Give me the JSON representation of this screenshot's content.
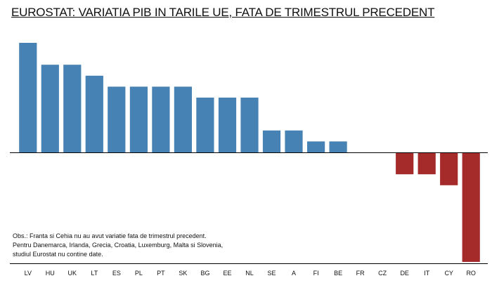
{
  "chart_data": {
    "type": "bar",
    "title": "EUROSTAT: VARIATIA PIB IN TARILE UE, FATA DE TRIMESTRUL PRECEDENT",
    "xlabel": "",
    "ylabel": "",
    "categories": [
      "LV",
      "HU",
      "UK",
      "LT",
      "ES",
      "PL",
      "PT",
      "SK",
      "BG",
      "EE",
      "NL",
      "SE",
      "A",
      "FI",
      "BE",
      "FR",
      "CZ",
      "DE",
      "IT",
      "CY",
      "RO"
    ],
    "values": [
      1.0,
      0.8,
      0.8,
      0.7,
      0.6,
      0.6,
      0.6,
      0.6,
      0.5,
      0.5,
      0.5,
      0.2,
      0.2,
      0.1,
      0.1,
      0.0,
      0.0,
      -0.2,
      -0.2,
      -0.3,
      -1.0
    ],
    "ylim": [
      -1.0,
      1.05
    ],
    "grid": false,
    "legend": "none",
    "colors": {
      "positive": "#4682b4",
      "negative": "#a52a2a",
      "axis": "#000000"
    }
  },
  "note": {
    "lines": [
      "Obs.: Franta si Cehia nu au avut variatie fata de trimestrul precedent.",
      "Pentru Danemarca, Irlanda, Grecia, Croatia, Luxemburg, Malta si Slovenia,",
      "studiul Eurostat nu contine date."
    ]
  }
}
